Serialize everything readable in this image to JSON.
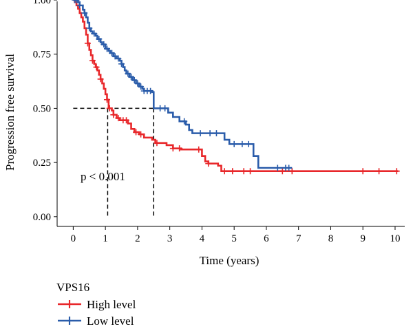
{
  "chart_data": {
    "type": "line",
    "xlabel": "Time (years)",
    "ylabel": "Progression free survival",
    "xlim": [
      -0.5,
      10.3
    ],
    "ylim": [
      -0.045,
      1.0
    ],
    "x_ticks": [
      "0",
      "1",
      "2",
      "3",
      "4",
      "5",
      "6",
      "7",
      "8",
      "9",
      "10"
    ],
    "y_ticks": [
      "0.00",
      "0.25",
      "0.50",
      "0.75",
      "1.00"
    ],
    "annotation": "p < 0.001",
    "median_lines": {
      "y": 0.5,
      "x": [
        1.07,
        2.5
      ]
    },
    "legend": {
      "title": "VPS16",
      "position": "bottom-left"
    },
    "series": [
      {
        "name": "High level",
        "color": "#e8272a",
        "steps": [
          [
            0,
            1.0
          ],
          [
            0.05,
            0.99
          ],
          [
            0.1,
            0.975
          ],
          [
            0.15,
            0.96
          ],
          [
            0.2,
            0.94
          ],
          [
            0.25,
            0.92
          ],
          [
            0.3,
            0.9
          ],
          [
            0.35,
            0.87
          ],
          [
            0.4,
            0.84
          ],
          [
            0.45,
            0.8
          ],
          [
            0.5,
            0.77
          ],
          [
            0.55,
            0.745
          ],
          [
            0.6,
            0.72
          ],
          [
            0.65,
            0.705
          ],
          [
            0.7,
            0.69
          ],
          [
            0.75,
            0.675
          ],
          [
            0.8,
            0.655
          ],
          [
            0.85,
            0.635
          ],
          [
            0.9,
            0.615
          ],
          [
            0.95,
            0.59
          ],
          [
            1.0,
            0.565
          ],
          [
            1.05,
            0.54
          ],
          [
            1.1,
            0.5
          ],
          [
            1.2,
            0.49
          ],
          [
            1.25,
            0.47
          ],
          [
            1.35,
            0.455
          ],
          [
            1.45,
            0.445
          ],
          [
            1.7,
            0.43
          ],
          [
            1.8,
            0.405
          ],
          [
            1.9,
            0.39
          ],
          [
            2.05,
            0.38
          ],
          [
            2.2,
            0.365
          ],
          [
            2.45,
            0.355
          ],
          [
            2.55,
            0.34
          ],
          [
            2.9,
            0.33
          ],
          [
            3.1,
            0.315
          ],
          [
            3.35,
            0.31
          ],
          [
            4.0,
            0.28
          ],
          [
            4.1,
            0.255
          ],
          [
            4.2,
            0.245
          ],
          [
            4.5,
            0.235
          ],
          [
            4.6,
            0.21
          ],
          [
            10.1,
            0.21
          ]
        ],
        "censors_x": [
          0.45,
          0.6,
          0.72,
          0.85,
          1.05,
          1.13,
          1.25,
          1.4,
          1.55,
          1.65,
          1.95,
          2.1,
          2.6,
          3.1,
          3.3,
          3.9,
          4.2,
          4.7,
          4.95,
          5.3,
          5.5,
          6.5,
          6.8,
          9.0,
          9.5,
          10.05
        ]
      },
      {
        "name": "Low level",
        "color": "#2a5caa",
        "steps": [
          [
            0,
            1.0
          ],
          [
            0.15,
            0.99
          ],
          [
            0.2,
            0.975
          ],
          [
            0.3,
            0.955
          ],
          [
            0.35,
            0.94
          ],
          [
            0.4,
            0.92
          ],
          [
            0.45,
            0.895
          ],
          [
            0.5,
            0.87
          ],
          [
            0.55,
            0.855
          ],
          [
            0.6,
            0.845
          ],
          [
            0.7,
            0.835
          ],
          [
            0.75,
            0.82
          ],
          [
            0.85,
            0.805
          ],
          [
            0.9,
            0.795
          ],
          [
            1.0,
            0.775
          ],
          [
            1.1,
            0.765
          ],
          [
            1.15,
            0.755
          ],
          [
            1.25,
            0.74
          ],
          [
            1.35,
            0.73
          ],
          [
            1.45,
            0.72
          ],
          [
            1.5,
            0.705
          ],
          [
            1.55,
            0.69
          ],
          [
            1.6,
            0.675
          ],
          [
            1.65,
            0.66
          ],
          [
            1.75,
            0.645
          ],
          [
            1.85,
            0.63
          ],
          [
            1.95,
            0.615
          ],
          [
            2.05,
            0.6
          ],
          [
            2.15,
            0.59
          ],
          [
            2.2,
            0.58
          ],
          [
            2.45,
            0.575
          ],
          [
            2.5,
            0.5
          ],
          [
            2.95,
            0.48
          ],
          [
            3.1,
            0.46
          ],
          [
            3.3,
            0.44
          ],
          [
            3.5,
            0.425
          ],
          [
            3.6,
            0.4
          ],
          [
            3.7,
            0.385
          ],
          [
            4.7,
            0.355
          ],
          [
            4.85,
            0.335
          ],
          [
            5.6,
            0.28
          ],
          [
            5.75,
            0.225
          ],
          [
            6.8,
            0.225
          ]
        ],
        "censors_x": [
          0.05,
          0.1,
          0.2,
          0.35,
          0.5,
          0.65,
          0.8,
          0.95,
          1.05,
          1.2,
          1.3,
          1.4,
          1.5,
          1.7,
          1.8,
          1.9,
          2.0,
          2.1,
          2.2,
          2.3,
          2.4,
          2.7,
          2.85,
          3.45,
          3.95,
          4.25,
          4.45,
          5.0,
          5.25,
          5.45,
          6.35,
          6.6,
          6.7
        ]
      }
    ]
  }
}
